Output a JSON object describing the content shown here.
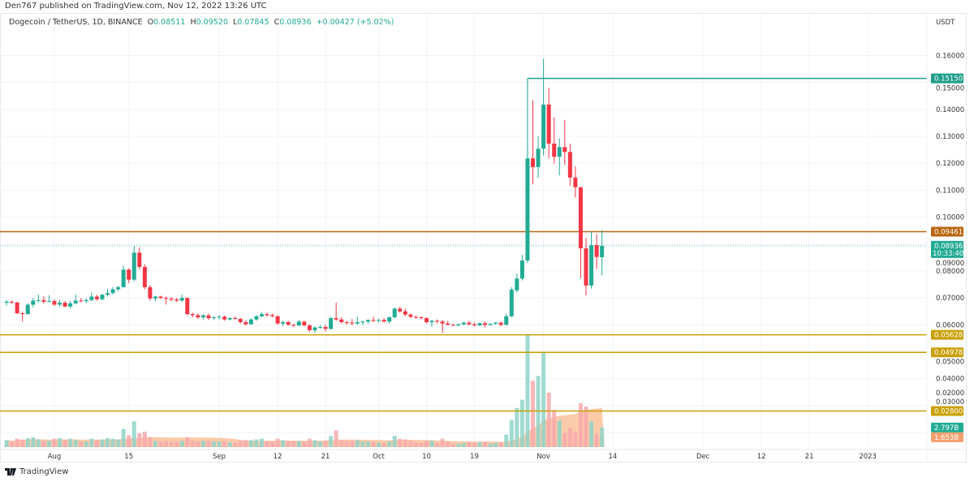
{
  "publisher_line": "Den767 published on TradingView.com, Nov 12, 2022 13:26 UTC",
  "legend": {
    "symbol": "Dogecoin / TetherUS, 1D, BINANCE",
    "open_label": "O",
    "open": "0.08511",
    "high_label": "H",
    "high": "0.09520",
    "low_label": "L",
    "low": "0.07845",
    "close_label": "C",
    "close": "0.08936",
    "change": "+0.00427 (+5.02%)"
  },
  "footer": {
    "logo_text": "TradingView",
    "logo_icon": "tradingview-logo-icon"
  },
  "colors": {
    "up": "#22ab94",
    "down": "#f23645",
    "vol_up": "#8fd3c8",
    "vol_down": "#f7a9ad",
    "vol_ma": "#f9b98d",
    "level_brown": "#b8650f",
    "level_gold": "#c9a007",
    "level_teal": "#1f9e89",
    "grid": "#f0f3fa"
  },
  "chart_data": {
    "type": "candlestick",
    "title": "Dogecoin / TetherUS, 1D, BINANCE",
    "ylabel": "USDT",
    "ylim": [
      0.0143,
      0.1755
    ],
    "grid": true,
    "y_ticks": [
      "0.16000",
      "0.15000",
      "0.14000",
      "0.13000",
      "0.12000",
      "0.11000",
      "0.10000",
      "0.09000",
      "0.08000",
      "0.07000",
      "0.06000",
      "0.05000",
      "0.04000",
      "0.03000",
      "0.02000"
    ],
    "x_ticks": [
      {
        "label": "Aug",
        "date": "2022-08-01"
      },
      {
        "label": "15",
        "date": "2022-08-15"
      },
      {
        "label": "Sep",
        "date": "2022-09-01"
      },
      {
        "label": "12",
        "date": "2022-09-12"
      },
      {
        "label": "21",
        "date": "2022-09-21"
      },
      {
        "label": "Oct",
        "date": "2022-10-01"
      },
      {
        "label": "10",
        "date": "2022-10-10"
      },
      {
        "label": "19",
        "date": "2022-10-19"
      },
      {
        "label": "Nov",
        "date": "2022-11-01"
      },
      {
        "label": "14",
        "date": "2022-11-14"
      },
      {
        "label": "Dec",
        "date": "2022-12-01"
      },
      {
        "label": "12",
        "date": "2022-12-12"
      },
      {
        "label": "21",
        "date": "2022-12-21"
      },
      {
        "label": "2023",
        "date": "2023-01-01"
      }
    ],
    "horizontal_levels": [
      {
        "value": "0.15150",
        "price": 0.1515,
        "color": "level_teal",
        "start_date": "2022-10-29"
      },
      {
        "value": "0.09461",
        "price": 0.09461,
        "color": "level_brown"
      },
      {
        "value": "0.05628",
        "price": 0.05628,
        "color": "level_gold"
      },
      {
        "value": "0.04978",
        "price": 0.04978,
        "color": "level_gold"
      },
      {
        "value": "0.02800",
        "price": 0.028,
        "color": "level_gold"
      }
    ],
    "last_price": {
      "value": "0.08936",
      "price": 0.08936,
      "countdown": "10:33:40"
    },
    "volume_last": "2.797B",
    "volume_ma_last": "1.653B",
    "columns": [
      "date",
      "open",
      "high",
      "low",
      "close",
      "volume_billions"
    ],
    "candles": [
      [
        "2022-07-23",
        0.0682,
        0.0692,
        0.0672,
        0.0686,
        1.0
      ],
      [
        "2022-07-24",
        0.0686,
        0.069,
        0.0678,
        0.0683,
        0.8
      ],
      [
        "2022-07-25",
        0.0683,
        0.0686,
        0.064,
        0.0643,
        1.2
      ],
      [
        "2022-07-26",
        0.0643,
        0.065,
        0.0612,
        0.064,
        1.1
      ],
      [
        "2022-07-27",
        0.064,
        0.068,
        0.0638,
        0.0675,
        1.3
      ],
      [
        "2022-07-28",
        0.0675,
        0.07,
        0.0665,
        0.069,
        1.4
      ],
      [
        "2022-07-29",
        0.069,
        0.0712,
        0.0682,
        0.0692,
        1.1
      ],
      [
        "2022-07-30",
        0.0692,
        0.0706,
        0.068,
        0.0686,
        0.9
      ],
      [
        "2022-07-31",
        0.0686,
        0.071,
        0.0683,
        0.0688,
        0.9
      ],
      [
        "2022-08-01",
        0.0688,
        0.0695,
        0.067,
        0.0675,
        1.2
      ],
      [
        "2022-08-02",
        0.0675,
        0.0692,
        0.0668,
        0.0682,
        1.3
      ],
      [
        "2022-08-03",
        0.0682,
        0.0688,
        0.0665,
        0.0668,
        1.0
      ],
      [
        "2022-08-04",
        0.0668,
        0.069,
        0.066,
        0.068,
        1.2
      ],
      [
        "2022-08-05",
        0.068,
        0.0712,
        0.0676,
        0.069,
        1.0
      ],
      [
        "2022-08-06",
        0.069,
        0.07,
        0.0684,
        0.0688,
        0.8
      ],
      [
        "2022-08-07",
        0.0688,
        0.0698,
        0.068,
        0.0692,
        0.8
      ],
      [
        "2022-08-08",
        0.0692,
        0.072,
        0.0688,
        0.0705,
        1.2
      ],
      [
        "2022-08-09",
        0.0705,
        0.0712,
        0.069,
        0.0695,
        1.0
      ],
      [
        "2022-08-10",
        0.0695,
        0.0715,
        0.069,
        0.0712,
        1.1
      ],
      [
        "2022-08-11",
        0.0712,
        0.0735,
        0.0705,
        0.0718,
        1.3
      ],
      [
        "2022-08-12",
        0.0718,
        0.074,
        0.0712,
        0.0732,
        1.2
      ],
      [
        "2022-08-13",
        0.0732,
        0.0745,
        0.0725,
        0.074,
        1.1
      ],
      [
        "2022-08-14",
        0.074,
        0.082,
        0.0738,
        0.0805,
        2.6
      ],
      [
        "2022-08-15",
        0.0805,
        0.081,
        0.0755,
        0.0768,
        1.7
      ],
      [
        "2022-08-16",
        0.0768,
        0.0892,
        0.0762,
        0.0868,
        3.7
      ],
      [
        "2022-08-17",
        0.0868,
        0.0888,
        0.0805,
        0.0815,
        2.0
      ],
      [
        "2022-08-18",
        0.0815,
        0.0825,
        0.0732,
        0.074,
        2.2
      ],
      [
        "2022-08-19",
        0.074,
        0.0748,
        0.069,
        0.0698,
        1.4
      ],
      [
        "2022-08-20",
        0.0698,
        0.0708,
        0.0688,
        0.0705,
        0.9
      ],
      [
        "2022-08-21",
        0.0705,
        0.0708,
        0.0695,
        0.07,
        0.8
      ],
      [
        "2022-08-22",
        0.07,
        0.0706,
        0.0675,
        0.0698,
        0.9
      ],
      [
        "2022-08-23",
        0.0698,
        0.0702,
        0.0688,
        0.0694,
        0.8
      ],
      [
        "2022-08-24",
        0.0694,
        0.07,
        0.0685,
        0.069,
        0.8
      ],
      [
        "2022-08-25",
        0.069,
        0.0712,
        0.0686,
        0.07,
        0.9
      ],
      [
        "2022-08-26",
        0.07,
        0.0702,
        0.0635,
        0.064,
        1.4
      ],
      [
        "2022-08-27",
        0.064,
        0.0645,
        0.0628,
        0.0636,
        0.9
      ],
      [
        "2022-08-28",
        0.0636,
        0.0642,
        0.0622,
        0.0628,
        0.8
      ],
      [
        "2022-08-29",
        0.0628,
        0.064,
        0.062,
        0.0635,
        0.9
      ],
      [
        "2022-08-30",
        0.0635,
        0.0642,
        0.0618,
        0.0625,
        0.9
      ],
      [
        "2022-08-31",
        0.0625,
        0.0632,
        0.0618,
        0.0628,
        0.8
      ],
      [
        "2022-09-01",
        0.0628,
        0.0636,
        0.062,
        0.063,
        0.8
      ],
      [
        "2022-09-02",
        0.063,
        0.0635,
        0.0615,
        0.062,
        0.9
      ],
      [
        "2022-09-03",
        0.062,
        0.0628,
        0.0616,
        0.0625,
        0.7
      ],
      [
        "2022-09-04",
        0.0625,
        0.0632,
        0.062,
        0.0622,
        0.7
      ],
      [
        "2022-09-05",
        0.0622,
        0.0626,
        0.0605,
        0.061,
        0.9
      ],
      [
        "2022-09-06",
        0.061,
        0.0618,
        0.0598,
        0.0602,
        1.0
      ],
      [
        "2022-09-07",
        0.0602,
        0.0625,
        0.06,
        0.062,
        1.0
      ],
      [
        "2022-09-08",
        0.062,
        0.0636,
        0.0615,
        0.0632,
        1.1
      ],
      [
        "2022-09-09",
        0.0632,
        0.0648,
        0.0628,
        0.064,
        1.2
      ],
      [
        "2022-09-10",
        0.064,
        0.0645,
        0.063,
        0.0636,
        0.9
      ],
      [
        "2022-09-11",
        0.0636,
        0.0642,
        0.0628,
        0.0632,
        0.8
      ],
      [
        "2022-09-12",
        0.0632,
        0.0635,
        0.06,
        0.0605,
        1.2
      ],
      [
        "2022-09-13",
        0.0605,
        0.0615,
        0.0595,
        0.061,
        1.0
      ],
      [
        "2022-09-14",
        0.061,
        0.0615,
        0.0598,
        0.06,
        0.9
      ],
      [
        "2022-09-15",
        0.06,
        0.0605,
        0.0592,
        0.0598,
        0.9
      ],
      [
        "2022-09-16",
        0.0598,
        0.0618,
        0.0595,
        0.0612,
        0.9
      ],
      [
        "2022-09-17",
        0.0612,
        0.0615,
        0.0595,
        0.0598,
        0.8
      ],
      [
        "2022-09-18",
        0.0598,
        0.0602,
        0.0575,
        0.058,
        1.2
      ],
      [
        "2022-09-19",
        0.058,
        0.0595,
        0.057,
        0.059,
        1.0
      ],
      [
        "2022-09-20",
        0.059,
        0.06,
        0.0585,
        0.0592,
        0.8
      ],
      [
        "2022-09-21",
        0.0592,
        0.0602,
        0.0575,
        0.0585,
        0.9
      ],
      [
        "2022-09-22",
        0.0585,
        0.063,
        0.0582,
        0.0625,
        1.6
      ],
      [
        "2022-09-23",
        0.0625,
        0.0683,
        0.0615,
        0.062,
        2.4
      ],
      [
        "2022-09-24",
        0.062,
        0.0628,
        0.0605,
        0.061,
        1.0
      ],
      [
        "2022-09-25",
        0.061,
        0.0615,
        0.06,
        0.0608,
        0.9
      ],
      [
        "2022-09-26",
        0.0608,
        0.0622,
        0.0598,
        0.0605,
        0.9
      ],
      [
        "2022-09-27",
        0.0605,
        0.063,
        0.06,
        0.061,
        1.0
      ],
      [
        "2022-09-28",
        0.061,
        0.0616,
        0.06,
        0.0612,
        0.8
      ],
      [
        "2022-09-29",
        0.0612,
        0.062,
        0.0605,
        0.0618,
        0.8
      ],
      [
        "2022-09-30",
        0.0618,
        0.063,
        0.061,
        0.0615,
        0.8
      ],
      [
        "2022-10-01",
        0.0615,
        0.0622,
        0.0608,
        0.0618,
        0.6
      ],
      [
        "2022-10-02",
        0.0618,
        0.0625,
        0.061,
        0.0612,
        0.6
      ],
      [
        "2022-10-03",
        0.0612,
        0.0632,
        0.0605,
        0.0628,
        0.8
      ],
      [
        "2022-10-04",
        0.0628,
        0.0665,
        0.0625,
        0.066,
        1.6
      ],
      [
        "2022-10-05",
        0.066,
        0.0668,
        0.0645,
        0.065,
        1.2
      ],
      [
        "2022-10-06",
        0.065,
        0.066,
        0.0632,
        0.0638,
        1.1
      ],
      [
        "2022-10-07",
        0.0638,
        0.0642,
        0.0625,
        0.063,
        0.9
      ],
      [
        "2022-10-08",
        0.063,
        0.0634,
        0.0622,
        0.0628,
        0.7
      ],
      [
        "2022-10-09",
        0.0628,
        0.0632,
        0.062,
        0.0625,
        0.6
      ],
      [
        "2022-10-10",
        0.0625,
        0.0628,
        0.0605,
        0.061,
        0.9
      ],
      [
        "2022-10-11",
        0.061,
        0.0618,
        0.0592,
        0.0615,
        0.9
      ],
      [
        "2022-10-12",
        0.0615,
        0.062,
        0.0605,
        0.0612,
        0.6
      ],
      [
        "2022-10-13",
        0.0612,
        0.0618,
        0.057,
        0.0605,
        1.2
      ],
      [
        "2022-10-14",
        0.0605,
        0.0615,
        0.0598,
        0.06,
        0.8
      ],
      [
        "2022-10-15",
        0.06,
        0.0604,
        0.0595,
        0.0598,
        0.5
      ],
      [
        "2022-10-16",
        0.0598,
        0.0605,
        0.0594,
        0.0602,
        0.5
      ],
      [
        "2022-10-17",
        0.0602,
        0.0612,
        0.0598,
        0.0608,
        0.6
      ],
      [
        "2022-10-18",
        0.0608,
        0.0615,
        0.0598,
        0.0602,
        0.7
      ],
      [
        "2022-10-19",
        0.0602,
        0.0608,
        0.0595,
        0.0598,
        0.6
      ],
      [
        "2022-10-20",
        0.0598,
        0.0608,
        0.0596,
        0.0606,
        0.7
      ],
      [
        "2022-10-21",
        0.0606,
        0.0612,
        0.059,
        0.06,
        0.8
      ],
      [
        "2022-10-22",
        0.06,
        0.0606,
        0.0598,
        0.0604,
        0.5
      ],
      [
        "2022-10-23",
        0.0604,
        0.061,
        0.06,
        0.0608,
        0.6
      ],
      [
        "2022-10-24",
        0.0608,
        0.0612,
        0.0595,
        0.06,
        0.7
      ],
      [
        "2022-10-25",
        0.06,
        0.064,
        0.0598,
        0.0632,
        1.8
      ],
      [
        "2022-10-26",
        0.0632,
        0.074,
        0.0628,
        0.0731,
        3.9
      ],
      [
        "2022-10-27",
        0.0728,
        0.079,
        0.072,
        0.0772,
        5.6
      ],
      [
        "2022-10-28",
        0.0772,
        0.086,
        0.0765,
        0.0839,
        6.8
      ],
      [
        "2022-10-29",
        0.0839,
        0.123,
        0.083,
        0.1218,
        16.0
      ],
      [
        "2022-10-30",
        0.1218,
        0.1434,
        0.1122,
        0.1186,
        9.5
      ],
      [
        "2022-10-31",
        0.1186,
        0.1301,
        0.1146,
        0.1254,
        10.2
      ],
      [
        "2022-11-01",
        0.1254,
        0.1588,
        0.1229,
        0.1418,
        13.5
      ],
      [
        "2022-11-02",
        0.1418,
        0.148,
        0.1219,
        0.1273,
        7.8
      ],
      [
        "2022-11-03",
        0.1273,
        0.1371,
        0.1199,
        0.1224,
        5.3
      ],
      [
        "2022-11-04",
        0.1224,
        0.1292,
        0.1155,
        0.126,
        3.8
      ],
      [
        "2022-11-05",
        0.126,
        0.1361,
        0.1194,
        0.1242,
        2.0
      ],
      [
        "2022-11-06",
        0.1242,
        0.1273,
        0.1117,
        0.1147,
        2.8
      ],
      [
        "2022-11-07",
        0.1147,
        0.1189,
        0.1073,
        0.1111,
        2.1
      ],
      [
        "2022-11-08",
        0.1111,
        0.1111,
        0.0773,
        0.0884,
        6.3
      ],
      [
        "2022-11-09",
        0.0884,
        0.0923,
        0.0709,
        0.0746,
        5.8
      ],
      [
        "2022-11-10",
        0.0746,
        0.0946,
        0.0734,
        0.0896,
        3.7
      ],
      [
        "2022-11-11",
        0.0896,
        0.0936,
        0.0807,
        0.0852,
        1.9
      ],
      [
        "2022-11-12",
        0.08511,
        0.0952,
        0.07845,
        0.08936,
        2.8
      ]
    ]
  }
}
